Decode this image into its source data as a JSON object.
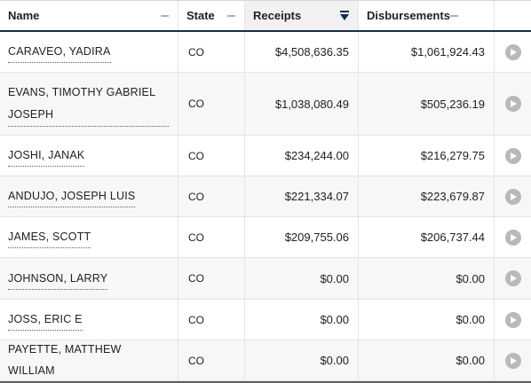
{
  "columns": {
    "name": "Name",
    "state": "State",
    "receipts": "Receipts",
    "disbursements": "Disbursements"
  },
  "sorted_column": "receipts",
  "sort_direction": "descending",
  "rows": [
    {
      "name": "CARAVEO, YADIRA",
      "state": "CO",
      "receipts": "$4,508,636.35",
      "disbursements": "$1,061,924.43"
    },
    {
      "name": "EVANS, TIMOTHY GABRIEL JOSEPH",
      "state": "CO",
      "receipts": "$1,038,080.49",
      "disbursements": "$505,236.19"
    },
    {
      "name": "JOSHI, JANAK",
      "state": "CO",
      "receipts": "$234,244.00",
      "disbursements": "$216,279.75"
    },
    {
      "name": "ANDUJO, JOSEPH LUIS",
      "state": "CO",
      "receipts": "$221,334.07",
      "disbursements": "$223,679.87"
    },
    {
      "name": "JAMES, SCOTT",
      "state": "CO",
      "receipts": "$209,755.06",
      "disbursements": "$206,737.44"
    },
    {
      "name": "JOHNSON, LARRY",
      "state": "CO",
      "receipts": "$0.00",
      "disbursements": "$0.00"
    },
    {
      "name": "JOSS, ERIC E",
      "state": "CO",
      "receipts": "$0.00",
      "disbursements": "$0.00"
    },
    {
      "name": "PAYETTE, MATTHEW WILLIAM",
      "state": "CO",
      "receipts": "$0.00",
      "disbursements": "$0.00"
    }
  ],
  "row_action_icon": "play-circle-icon",
  "colors": {
    "header_border": "#112e51",
    "sorted_header_bg": "#f1f1f1",
    "row_alt_bg": "#f7f7f7",
    "play_icon": "#b8b9bb"
  }
}
